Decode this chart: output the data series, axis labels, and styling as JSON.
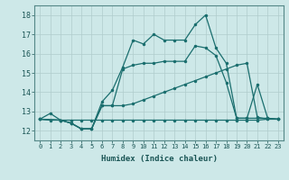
{
  "xlabel": "Humidex (Indice chaleur)",
  "xlim": [
    -0.5,
    23.5
  ],
  "ylim": [
    11.5,
    18.5
  ],
  "xticks": [
    0,
    1,
    2,
    3,
    4,
    5,
    6,
    7,
    8,
    9,
    10,
    11,
    12,
    13,
    14,
    15,
    16,
    17,
    18,
    19,
    20,
    21,
    22,
    23
  ],
  "yticks": [
    12,
    13,
    14,
    15,
    16,
    17,
    18
  ],
  "bg_color": "#cde8e8",
  "grid_color": "#b0cccc",
  "line_color": "#1a6e6e",
  "line_width": 0.9,
  "marker_size": 2.5,
  "curve1_x": [
    0,
    1,
    2,
    3,
    4,
    5,
    6,
    7,
    8,
    9,
    10,
    11,
    12,
    13,
    14,
    15,
    16,
    17,
    18,
    19,
    20,
    21,
    22,
    23
  ],
  "curve1_y": [
    12.6,
    12.55,
    12.55,
    12.55,
    12.55,
    12.55,
    12.55,
    12.55,
    12.55,
    12.55,
    12.55,
    12.55,
    12.55,
    12.55,
    12.55,
    12.55,
    12.55,
    12.55,
    12.55,
    12.55,
    12.55,
    12.55,
    12.6,
    12.6
  ],
  "curve2_x": [
    0,
    1,
    2,
    3,
    4,
    5,
    6,
    7,
    8,
    9,
    10,
    11,
    12,
    13,
    14,
    15,
    16,
    17,
    18,
    19,
    20,
    21,
    22,
    23
  ],
  "curve2_y": [
    12.6,
    12.9,
    12.55,
    12.4,
    12.1,
    12.1,
    13.3,
    13.3,
    13.3,
    13.4,
    13.6,
    13.8,
    14.0,
    14.2,
    14.4,
    14.6,
    14.8,
    15.0,
    15.2,
    15.4,
    15.5,
    12.7,
    12.6,
    12.6
  ],
  "curve3_x": [
    0,
    2,
    3,
    4,
    5,
    6,
    7,
    8,
    9,
    10,
    11,
    12,
    13,
    14,
    15,
    16,
    17,
    18,
    19,
    20,
    21,
    22,
    23
  ],
  "curve3_y": [
    12.6,
    12.55,
    12.4,
    12.1,
    12.1,
    13.5,
    14.1,
    15.3,
    16.7,
    16.5,
    17.0,
    16.7,
    16.7,
    16.7,
    17.5,
    18.0,
    16.3,
    15.5,
    12.65,
    12.65,
    12.65,
    12.65,
    12.6
  ],
  "curve4_x": [
    0,
    2,
    3,
    4,
    5,
    6,
    7,
    8,
    9,
    10,
    11,
    12,
    13,
    14,
    15,
    16,
    17,
    18,
    19,
    20,
    21,
    22,
    23
  ],
  "curve4_y": [
    12.6,
    12.55,
    12.4,
    12.1,
    12.1,
    13.3,
    13.3,
    15.2,
    15.4,
    15.5,
    15.5,
    15.6,
    15.6,
    15.6,
    16.4,
    16.3,
    15.9,
    14.5,
    12.65,
    12.65,
    14.4,
    12.65,
    12.6
  ]
}
